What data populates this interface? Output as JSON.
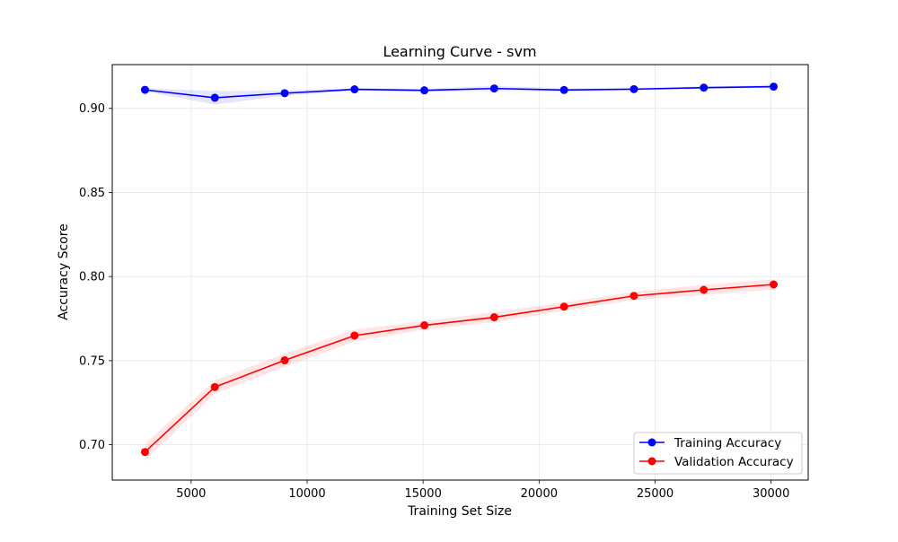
{
  "chart_data": {
    "type": "line",
    "title": "Learning Curve - svm",
    "xlabel": "Training Set Size",
    "ylabel": "Accuracy Score",
    "xlim": [
      1600,
      31600
    ],
    "ylim": [
      0.679,
      0.926
    ],
    "xticks": [
      5000,
      10000,
      15000,
      20000,
      25000,
      30000
    ],
    "yticks": [
      0.7,
      0.75,
      0.8,
      0.85,
      0.9
    ],
    "grid": true,
    "legend_position": "lower-right",
    "x": [
      3011,
      6022,
      9033,
      12044,
      15055,
      18066,
      21077,
      24088,
      27099,
      30110
    ],
    "series": [
      {
        "name": "Training Accuracy",
        "color": "#0000ff",
        "band_color": "#0000ff",
        "values": [
          0.911,
          0.9063,
          0.909,
          0.9113,
          0.9107,
          0.9118,
          0.9109,
          0.9114,
          0.9123,
          0.9129
        ],
        "band": [
          0.001,
          0.004,
          0.0015,
          0.0008,
          0.0009,
          0.0015,
          0.001,
          0.0009,
          0.0008,
          0.001
        ]
      },
      {
        "name": "Validation Accuracy",
        "color": "#ff0000",
        "band_color": "#ff0000",
        "values": [
          0.6957,
          0.7343,
          0.7502,
          0.7649,
          0.771,
          0.7758,
          0.7821,
          0.7885,
          0.7921,
          0.7953
        ],
        "band": [
          0.005,
          0.004,
          0.004,
          0.0035,
          0.0025,
          0.003,
          0.0025,
          0.0025,
          0.003,
          0.003
        ]
      }
    ]
  }
}
